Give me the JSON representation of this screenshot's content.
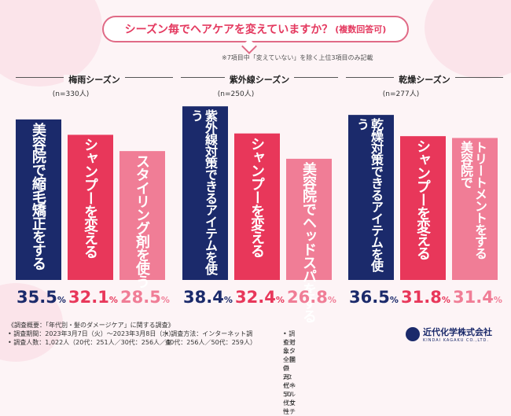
{
  "title": "シーズン毎でヘアケアを変えていますか？",
  "title_sub": "(複数回答可)",
  "note": "※7項目中「変えていない」を除く上位3項目のみ記載",
  "colors": {
    "navy": "#1b2a6b",
    "red": "#e8375a",
    "pink": "#f07d96",
    "pct_navy": "#1b2a6b",
    "pct_red": "#e8375a",
    "pct_pink": "#f07d96"
  },
  "chart_data": {
    "type": "bar",
    "title": "シーズン毎でヘアケアを変えていますか？(複数回答可)",
    "unit": "%",
    "ylim": [
      0,
      40
    ],
    "groups": [
      {
        "name": "梅雨シーズン",
        "n": "(n=330人)",
        "bars": [
          {
            "label": "美容院で縮毛矯正をする",
            "value": 35.5,
            "pct": "35.5",
            "unit": "%"
          },
          {
            "label": "シャンプーを変える",
            "value": 32.1,
            "pct": "32.1",
            "unit": "%"
          },
          {
            "label": "スタイリング剤を使う",
            "value": 28.5,
            "pct": "28.5",
            "unit": "%"
          }
        ]
      },
      {
        "name": "紫外線シーズン",
        "n": "(n=250人)",
        "bars": [
          {
            "label": "紫外線対策できるアイテムを使う",
            "value": 38.4,
            "pct": "38.4",
            "unit": "%"
          },
          {
            "label": "シャンプーを変える",
            "value": 32.4,
            "pct": "32.4",
            "unit": "%"
          },
          {
            "label": "美容院でヘッドスパをする",
            "value": 26.8,
            "pct": "26.8",
            "unit": "%"
          }
        ]
      },
      {
        "name": "乾燥シーズン",
        "n": "(n=277人)",
        "bars": [
          {
            "label": "乾燥対策できるアイテムを使う",
            "value": 36.5,
            "pct": "36.5",
            "unit": "%"
          },
          {
            "label": "シャンプーを変える",
            "value": 31.8,
            "pct": "31.8",
            "unit": "%"
          },
          {
            "label": "トリートメントをする 美容院で",
            "value": 31.4,
            "pct": "31.4",
            "unit": "%"
          }
        ]
      }
    ]
  },
  "footer": {
    "summary": "《調査概要：「年代別・髪のダメージケア」に関する調査》",
    "period": "• 調査期間：2023年3月7日（火）〜2023年3月8日（水）",
    "count": "• 調査人数：1,022人（20代：251人／30代：256人／40代：256人／50代：259人）",
    "method": "• 調査方法：インターネット調査",
    "target": "• 調査対象：全国の20代〜50代女性",
    "provider": "• モニター提供元：ゼネラルリサーチ"
  },
  "logo": {
    "name": "近代化学株式会社",
    "en": "KINDAI KAGAKU CO.,LTD."
  }
}
